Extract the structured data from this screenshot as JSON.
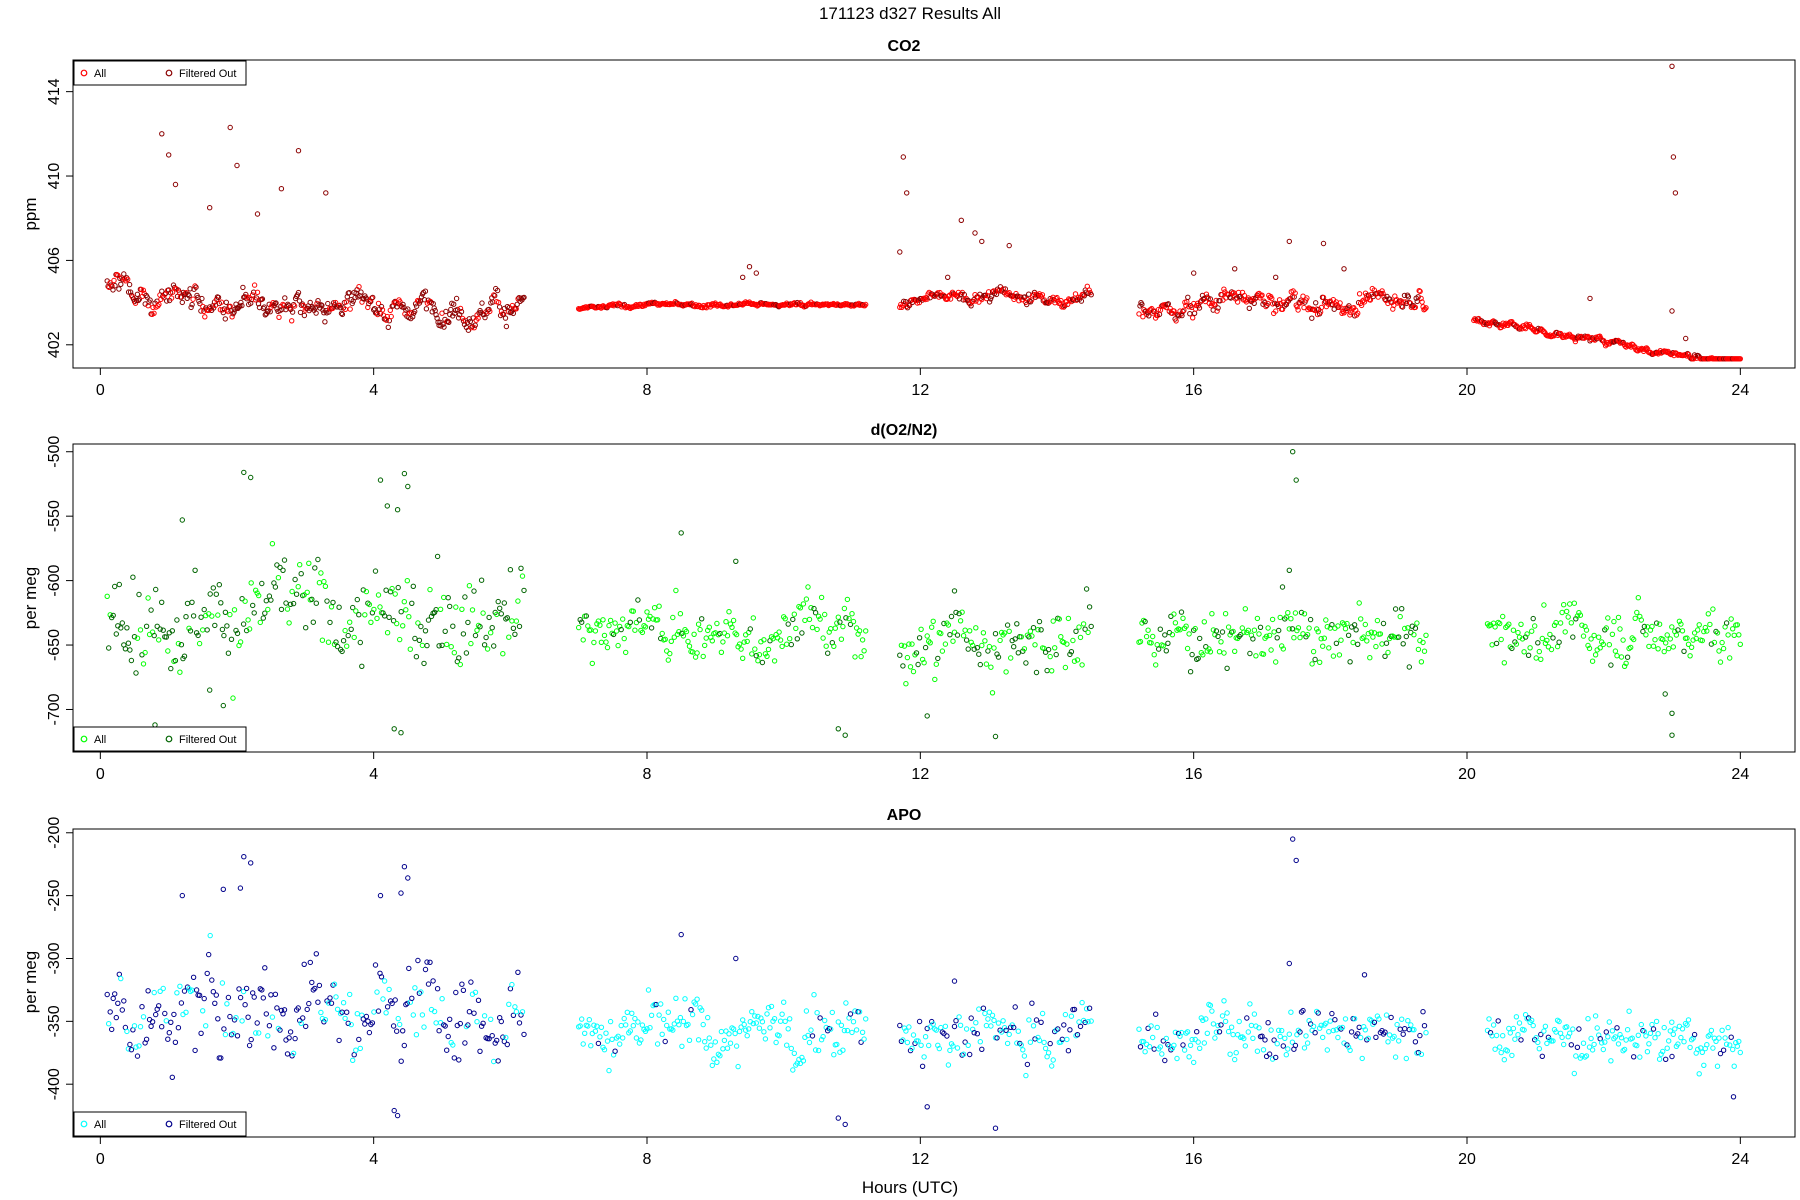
{
  "figure": {
    "title": "171123   d327   Results All",
    "xlabel": "Hours (UTC)"
  },
  "chart_data": [
    {
      "type": "scatter",
      "title": "CO2",
      "ylabel": "ppm",
      "xlim": [
        -0.4,
        24.8
      ],
      "ylim": [
        400.9,
        415.5
      ],
      "xticks": [
        0,
        4,
        8,
        12,
        16,
        20,
        24
      ],
      "yticks": [
        402,
        406,
        410,
        414
      ],
      "legend": {
        "position": "top-left",
        "entries": [
          {
            "label": "All",
            "color": "#ff0000"
          },
          {
            "label": "Filtered Out",
            "color": "#8b0000"
          }
        ]
      },
      "series": [
        {
          "name": "All",
          "color": "#ff0000"
        },
        {
          "name": "Filtered Out",
          "color": "#8b0000"
        }
      ],
      "segments": [
        {
          "x": [
            0.1,
            6.2
          ],
          "base": 403.8,
          "start": 404.8,
          "noise": 0.7,
          "spikes": [
            [
              0.9,
              412
            ],
            [
              1.0,
              411
            ],
            [
              1.9,
              412.3
            ],
            [
              2.0,
              410.5
            ],
            [
              2.9,
              411.2
            ],
            [
              2.65,
              409.4
            ],
            [
              1.1,
              409.6
            ],
            [
              1.6,
              408.5
            ],
            [
              2.3,
              408.2
            ],
            [
              3.3,
              409.2
            ]
          ],
          "filtered_fraction": 0.7
        },
        {
          "x": [
            7.0,
            11.2
          ],
          "base": 403.9,
          "start": 403.7,
          "noise": 0.12,
          "spikes": [
            [
              9.5,
              405.7
            ],
            [
              9.4,
              405.2
            ],
            [
              9.6,
              405.4
            ]
          ],
          "filtered_fraction": 0.1
        },
        {
          "x": [
            11.7,
            14.5
          ],
          "base": 404.3,
          "start": 404.0,
          "noise": 0.4,
          "spikes": [
            [
              11.75,
              410.9
            ],
            [
              11.8,
              409.2
            ],
            [
              11.7,
              406.4
            ],
            [
              12.6,
              407.9
            ],
            [
              12.8,
              407.3
            ],
            [
              12.9,
              406.9
            ],
            [
              13.3,
              406.7
            ],
            [
              12.4,
              405.2
            ]
          ],
          "filtered_fraction": 0.35
        },
        {
          "x": [
            15.2,
            19.4
          ],
          "base": 404.1,
          "start": 403.5,
          "noise": 0.55,
          "spikes": [
            [
              17.4,
              406.9
            ],
            [
              17.9,
              406.8
            ],
            [
              16.6,
              405.6
            ],
            [
              16.0,
              405.4
            ],
            [
              18.2,
              405.6
            ],
            [
              17.2,
              405.2
            ]
          ],
          "filtered_fraction": 0.35
        },
        {
          "x": [
            20.1,
            24.0
          ],
          "base": 402.5,
          "start": 403.2,
          "end": 401.1,
          "noise": 0.2,
          "spikes": [
            [
              23.0,
              415.2
            ],
            [
              23.02,
              410.9
            ],
            [
              23.05,
              409.2
            ],
            [
              23.0,
              403.6
            ],
            [
              21.8,
              404.2
            ],
            [
              23.2,
              402.3
            ]
          ],
          "filtered_fraction": 0.15
        }
      ]
    },
    {
      "type": "scatter",
      "title": "d(O2/N2)",
      "ylabel": "per meg",
      "xlim": [
        -0.4,
        24.8
      ],
      "ylim": [
        -733,
        -494
      ],
      "xticks": [
        0,
        4,
        8,
        12,
        16,
        20,
        24
      ],
      "yticks": [
        -500,
        -550,
        -600,
        -650,
        -700
      ],
      "legend": {
        "position": "bottom-left",
        "entries": [
          {
            "label": "All",
            "color": "#00ff00"
          },
          {
            "label": "Filtered Out",
            "color": "#006400"
          }
        ]
      },
      "series": [
        {
          "name": "All",
          "color": "#00ff00"
        },
        {
          "name": "Filtered Out",
          "color": "#006400"
        }
      ],
      "segments": [
        {
          "x": [
            0.1,
            6.2
          ],
          "base": -625,
          "noise": 28,
          "spikes": [
            [
              2.1,
              -516
            ],
            [
              2.2,
              -520
            ],
            [
              4.45,
              -517
            ],
            [
              4.5,
              -527
            ],
            [
              4.35,
              -545
            ],
            [
              4.2,
              -542
            ],
            [
              4.1,
              -522
            ],
            [
              4.3,
              -715
            ],
            [
              4.4,
              -718
            ],
            [
              1.6,
              -685
            ],
            [
              1.8,
              -697
            ],
            [
              0.8,
              -712
            ],
            [
              1.2,
              -553
            ]
          ],
          "filtered_fraction": 0.65
        },
        {
          "x": [
            7.0,
            11.2
          ],
          "base": -640,
          "noise": 18,
          "spikes": [
            [
              8.5,
              -563
            ],
            [
              10.8,
              -715
            ],
            [
              10.9,
              -720
            ],
            [
              9.3,
              -585
            ]
          ],
          "filtered_fraction": 0.15
        },
        {
          "x": [
            11.7,
            14.5
          ],
          "base": -645,
          "noise": 20,
          "spikes": [
            [
              13.1,
              -721
            ],
            [
              12.1,
              -705
            ],
            [
              12.5,
              -608
            ]
          ],
          "filtered_fraction": 0.4
        },
        {
          "x": [
            15.2,
            19.4
          ],
          "base": -642,
          "noise": 16,
          "spikes": [
            [
              17.45,
              -500
            ],
            [
              17.5,
              -522
            ],
            [
              17.4,
              -592
            ],
            [
              17.3,
              -605
            ]
          ],
          "filtered_fraction": 0.25
        },
        {
          "x": [
            20.3,
            24.0
          ],
          "base": -640,
          "noise": 16,
          "spikes": [
            [
              23.0,
              -720
            ],
            [
              23.0,
              -703
            ],
            [
              22.9,
              -688
            ]
          ],
          "filtered_fraction": 0.1
        }
      ]
    },
    {
      "type": "scatter",
      "title": "APO",
      "ylabel": "per meg",
      "xlim": [
        -0.4,
        24.8
      ],
      "ylim": [
        -442,
        -197
      ],
      "xticks": [
        0,
        4,
        8,
        12,
        16,
        20,
        24
      ],
      "yticks": [
        -200,
        -250,
        -300,
        -350,
        -400
      ],
      "legend": {
        "position": "bottom-left",
        "entries": [
          {
            "label": "All",
            "color": "#00ffff"
          },
          {
            "label": "Filtered Out",
            "color": "#00008b"
          }
        ]
      },
      "series": [
        {
          "name": "All",
          "color": "#00ffff"
        },
        {
          "name": "Filtered Out",
          "color": "#00008b"
        }
      ],
      "segments": [
        {
          "x": [
            0.1,
            6.2
          ],
          "base": -335,
          "noise": 28,
          "spikes": [
            [
              2.1,
              -219
            ],
            [
              2.2,
              -224
            ],
            [
              2.05,
              -244
            ],
            [
              1.8,
              -245
            ],
            [
              4.45,
              -227
            ],
            [
              4.5,
              -236
            ],
            [
              4.4,
              -248
            ],
            [
              4.1,
              -250
            ],
            [
              4.3,
              -421
            ],
            [
              4.35,
              -425
            ],
            [
              1.2,
              -250
            ]
          ],
          "filtered_fraction": 0.7
        },
        {
          "x": [
            7.0,
            11.2
          ],
          "base": -355,
          "noise": 18,
          "spikes": [
            [
              8.5,
              -281
            ],
            [
              10.8,
              -427
            ],
            [
              10.9,
              -432
            ],
            [
              9.3,
              -300
            ]
          ],
          "filtered_fraction": 0.1
        },
        {
          "x": [
            11.7,
            14.5
          ],
          "base": -358,
          "noise": 20,
          "spikes": [
            [
              13.1,
              -435
            ],
            [
              12.1,
              -418
            ],
            [
              12.5,
              -318
            ]
          ],
          "filtered_fraction": 0.4
        },
        {
          "x": [
            15.2,
            19.4
          ],
          "base": -358,
          "noise": 16,
          "spikes": [
            [
              17.45,
              -205
            ],
            [
              17.5,
              -222
            ],
            [
              17.4,
              -304
            ],
            [
              18.5,
              -313
            ]
          ],
          "filtered_fraction": 0.3
        },
        {
          "x": [
            20.3,
            24.0
          ],
          "base": -365,
          "noise": 15,
          "spikes": [
            [
              23.9,
              -410
            ],
            [
              23.0,
              -378
            ]
          ],
          "filtered_fraction": 0.15
        }
      ]
    }
  ]
}
